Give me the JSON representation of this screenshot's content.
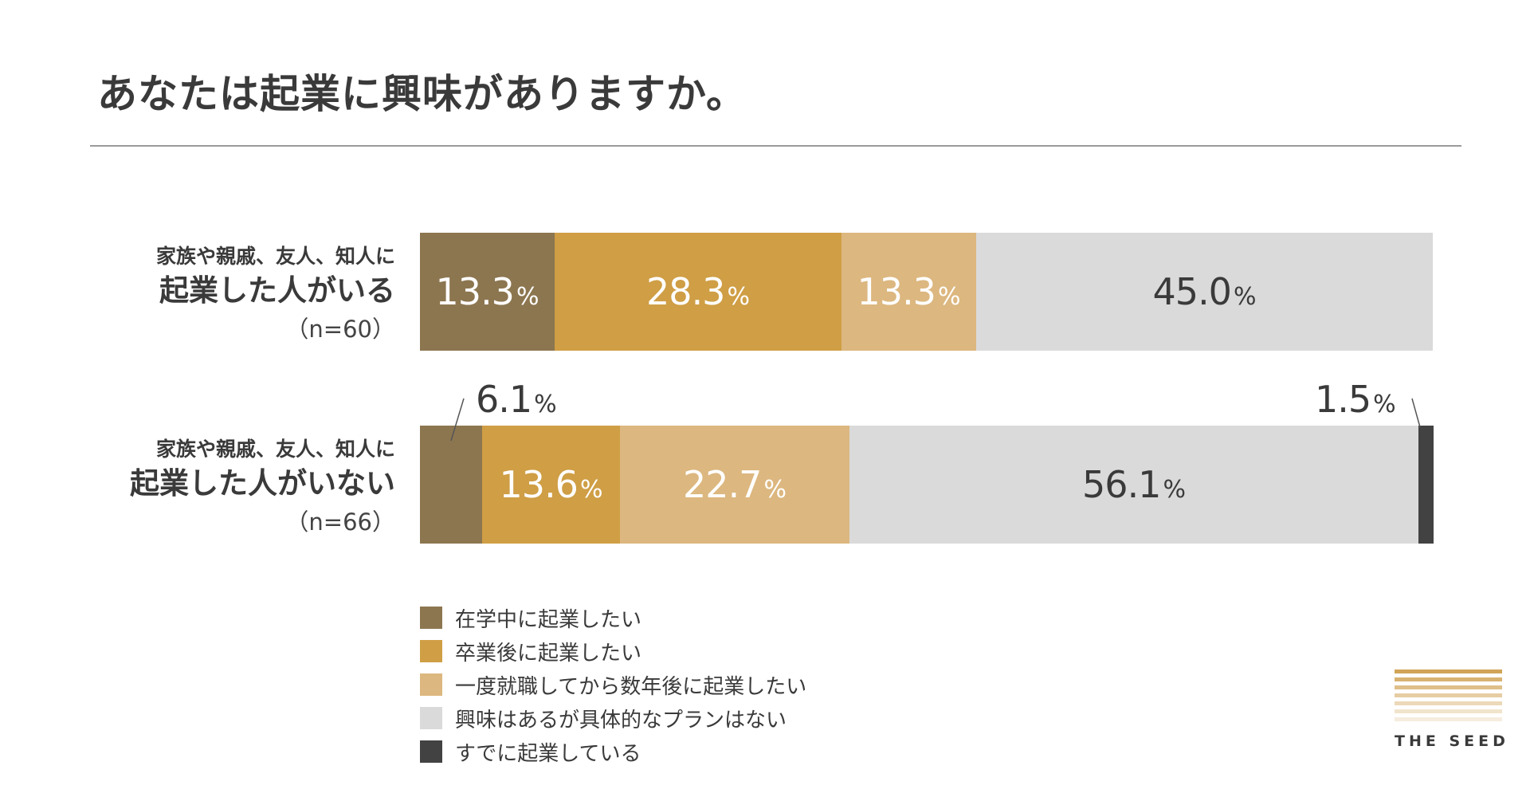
{
  "title": "あなたは起業に興味がありますか。",
  "percent_unit": "%",
  "colors": {
    "during_school": "#8c7650",
    "after_graduation": "#cf9e45",
    "after_work": "#dcb77f",
    "interested_no_plan": "#dadada",
    "already": "#424242"
  },
  "chart_data": {
    "type": "bar",
    "orientation": "horizontal-stacked-100",
    "categories": [
      {
        "line1": "家族や親戚、友人、知人に",
        "line2": "起業した人がいる",
        "n": "（n=60）"
      },
      {
        "line1": "家族や親戚、友人、知人に",
        "line2": "起業した人がいない",
        "n": "（n=66）"
      }
    ],
    "series": [
      {
        "name": "在学中に起業したい",
        "color": "#8c7650",
        "label_color": "#ffffff",
        "values": [
          13.3,
          6.1
        ],
        "labels": [
          "13.3",
          "6.1"
        ]
      },
      {
        "name": "卒業後に起業したい",
        "color": "#cf9e45",
        "label_color": "#ffffff",
        "values": [
          28.3,
          13.6
        ],
        "labels": [
          "28.3",
          "13.6"
        ]
      },
      {
        "name": "一度就職してから数年後に起業したい",
        "color": "#dcb77f",
        "label_color": "#ffffff",
        "values": [
          13.3,
          22.7
        ],
        "labels": [
          "13.3",
          "22.7"
        ]
      },
      {
        "name": "興味はあるが具体的なプランはない",
        "color": "#dadada",
        "label_color": "#3a3a3a",
        "values": [
          45.0,
          56.1
        ],
        "labels": [
          "45.0",
          "56.1"
        ]
      },
      {
        "name": "すでに起業している",
        "color": "#424242",
        "label_color": "#ffffff",
        "values": [
          0,
          1.5
        ],
        "labels": [
          "",
          "1.5"
        ]
      }
    ],
    "xlim": [
      0,
      100
    ],
    "legend": "bottom-left"
  },
  "logo": {
    "text": "THE SEED"
  }
}
